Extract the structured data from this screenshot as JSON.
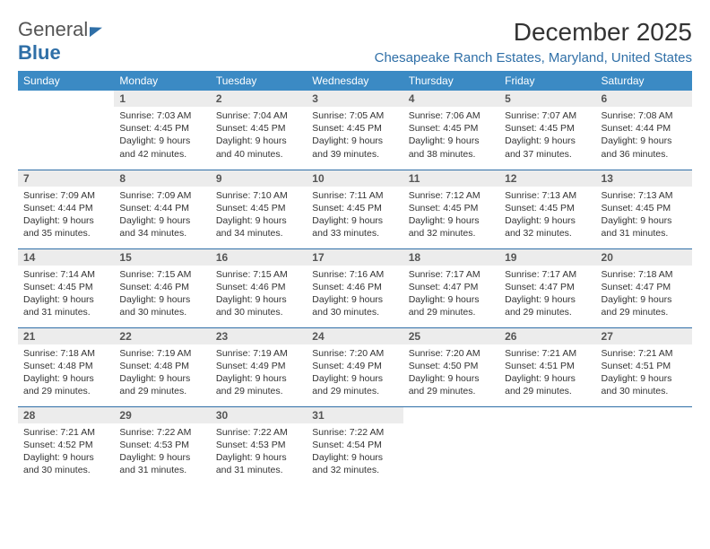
{
  "brand": {
    "name_a": "General",
    "name_b": "Blue"
  },
  "title": "December 2025",
  "location": "Chesapeake Ranch Estates, Maryland, United States",
  "colors": {
    "header_bg": "#3b8ac4",
    "accent": "#2f6fa7",
    "daynum_bg": "#ececec",
    "text": "#333333",
    "page_bg": "#ffffff"
  },
  "typography": {
    "title_fontsize": 28,
    "location_fontsize": 15,
    "dayhead_fontsize": 12,
    "cell_fontsize": 10.5,
    "font_family": "Arial"
  },
  "layout": {
    "columns": 7,
    "rows": 5,
    "first_weekday_offset": 1
  },
  "day_headers": [
    "Sunday",
    "Monday",
    "Tuesday",
    "Wednesday",
    "Thursday",
    "Friday",
    "Saturday"
  ],
  "days": [
    {
      "n": 1,
      "sunrise": "7:03 AM",
      "sunset": "4:45 PM",
      "daylight": "9 hours and 42 minutes."
    },
    {
      "n": 2,
      "sunrise": "7:04 AM",
      "sunset": "4:45 PM",
      "daylight": "9 hours and 40 minutes."
    },
    {
      "n": 3,
      "sunrise": "7:05 AM",
      "sunset": "4:45 PM",
      "daylight": "9 hours and 39 minutes."
    },
    {
      "n": 4,
      "sunrise": "7:06 AM",
      "sunset": "4:45 PM",
      "daylight": "9 hours and 38 minutes."
    },
    {
      "n": 5,
      "sunrise": "7:07 AM",
      "sunset": "4:45 PM",
      "daylight": "9 hours and 37 minutes."
    },
    {
      "n": 6,
      "sunrise": "7:08 AM",
      "sunset": "4:44 PM",
      "daylight": "9 hours and 36 minutes."
    },
    {
      "n": 7,
      "sunrise": "7:09 AM",
      "sunset": "4:44 PM",
      "daylight": "9 hours and 35 minutes."
    },
    {
      "n": 8,
      "sunrise": "7:09 AM",
      "sunset": "4:44 PM",
      "daylight": "9 hours and 34 minutes."
    },
    {
      "n": 9,
      "sunrise": "7:10 AM",
      "sunset": "4:45 PM",
      "daylight": "9 hours and 34 minutes."
    },
    {
      "n": 10,
      "sunrise": "7:11 AM",
      "sunset": "4:45 PM",
      "daylight": "9 hours and 33 minutes."
    },
    {
      "n": 11,
      "sunrise": "7:12 AM",
      "sunset": "4:45 PM",
      "daylight": "9 hours and 32 minutes."
    },
    {
      "n": 12,
      "sunrise": "7:13 AM",
      "sunset": "4:45 PM",
      "daylight": "9 hours and 32 minutes."
    },
    {
      "n": 13,
      "sunrise": "7:13 AM",
      "sunset": "4:45 PM",
      "daylight": "9 hours and 31 minutes."
    },
    {
      "n": 14,
      "sunrise": "7:14 AM",
      "sunset": "4:45 PM",
      "daylight": "9 hours and 31 minutes."
    },
    {
      "n": 15,
      "sunrise": "7:15 AM",
      "sunset": "4:46 PM",
      "daylight": "9 hours and 30 minutes."
    },
    {
      "n": 16,
      "sunrise": "7:15 AM",
      "sunset": "4:46 PM",
      "daylight": "9 hours and 30 minutes."
    },
    {
      "n": 17,
      "sunrise": "7:16 AM",
      "sunset": "4:46 PM",
      "daylight": "9 hours and 30 minutes."
    },
    {
      "n": 18,
      "sunrise": "7:17 AM",
      "sunset": "4:47 PM",
      "daylight": "9 hours and 29 minutes."
    },
    {
      "n": 19,
      "sunrise": "7:17 AM",
      "sunset": "4:47 PM",
      "daylight": "9 hours and 29 minutes."
    },
    {
      "n": 20,
      "sunrise": "7:18 AM",
      "sunset": "4:47 PM",
      "daylight": "9 hours and 29 minutes."
    },
    {
      "n": 21,
      "sunrise": "7:18 AM",
      "sunset": "4:48 PM",
      "daylight": "9 hours and 29 minutes."
    },
    {
      "n": 22,
      "sunrise": "7:19 AM",
      "sunset": "4:48 PM",
      "daylight": "9 hours and 29 minutes."
    },
    {
      "n": 23,
      "sunrise": "7:19 AM",
      "sunset": "4:49 PM",
      "daylight": "9 hours and 29 minutes."
    },
    {
      "n": 24,
      "sunrise": "7:20 AM",
      "sunset": "4:49 PM",
      "daylight": "9 hours and 29 minutes."
    },
    {
      "n": 25,
      "sunrise": "7:20 AM",
      "sunset": "4:50 PM",
      "daylight": "9 hours and 29 minutes."
    },
    {
      "n": 26,
      "sunrise": "7:21 AM",
      "sunset": "4:51 PM",
      "daylight": "9 hours and 29 minutes."
    },
    {
      "n": 27,
      "sunrise": "7:21 AM",
      "sunset": "4:51 PM",
      "daylight": "9 hours and 30 minutes."
    },
    {
      "n": 28,
      "sunrise": "7:21 AM",
      "sunset": "4:52 PM",
      "daylight": "9 hours and 30 minutes."
    },
    {
      "n": 29,
      "sunrise": "7:22 AM",
      "sunset": "4:53 PM",
      "daylight": "9 hours and 31 minutes."
    },
    {
      "n": 30,
      "sunrise": "7:22 AM",
      "sunset": "4:53 PM",
      "daylight": "9 hours and 31 minutes."
    },
    {
      "n": 31,
      "sunrise": "7:22 AM",
      "sunset": "4:54 PM",
      "daylight": "9 hours and 32 minutes."
    }
  ],
  "labels": {
    "sunrise": "Sunrise:",
    "sunset": "Sunset:",
    "daylight": "Daylight:"
  }
}
